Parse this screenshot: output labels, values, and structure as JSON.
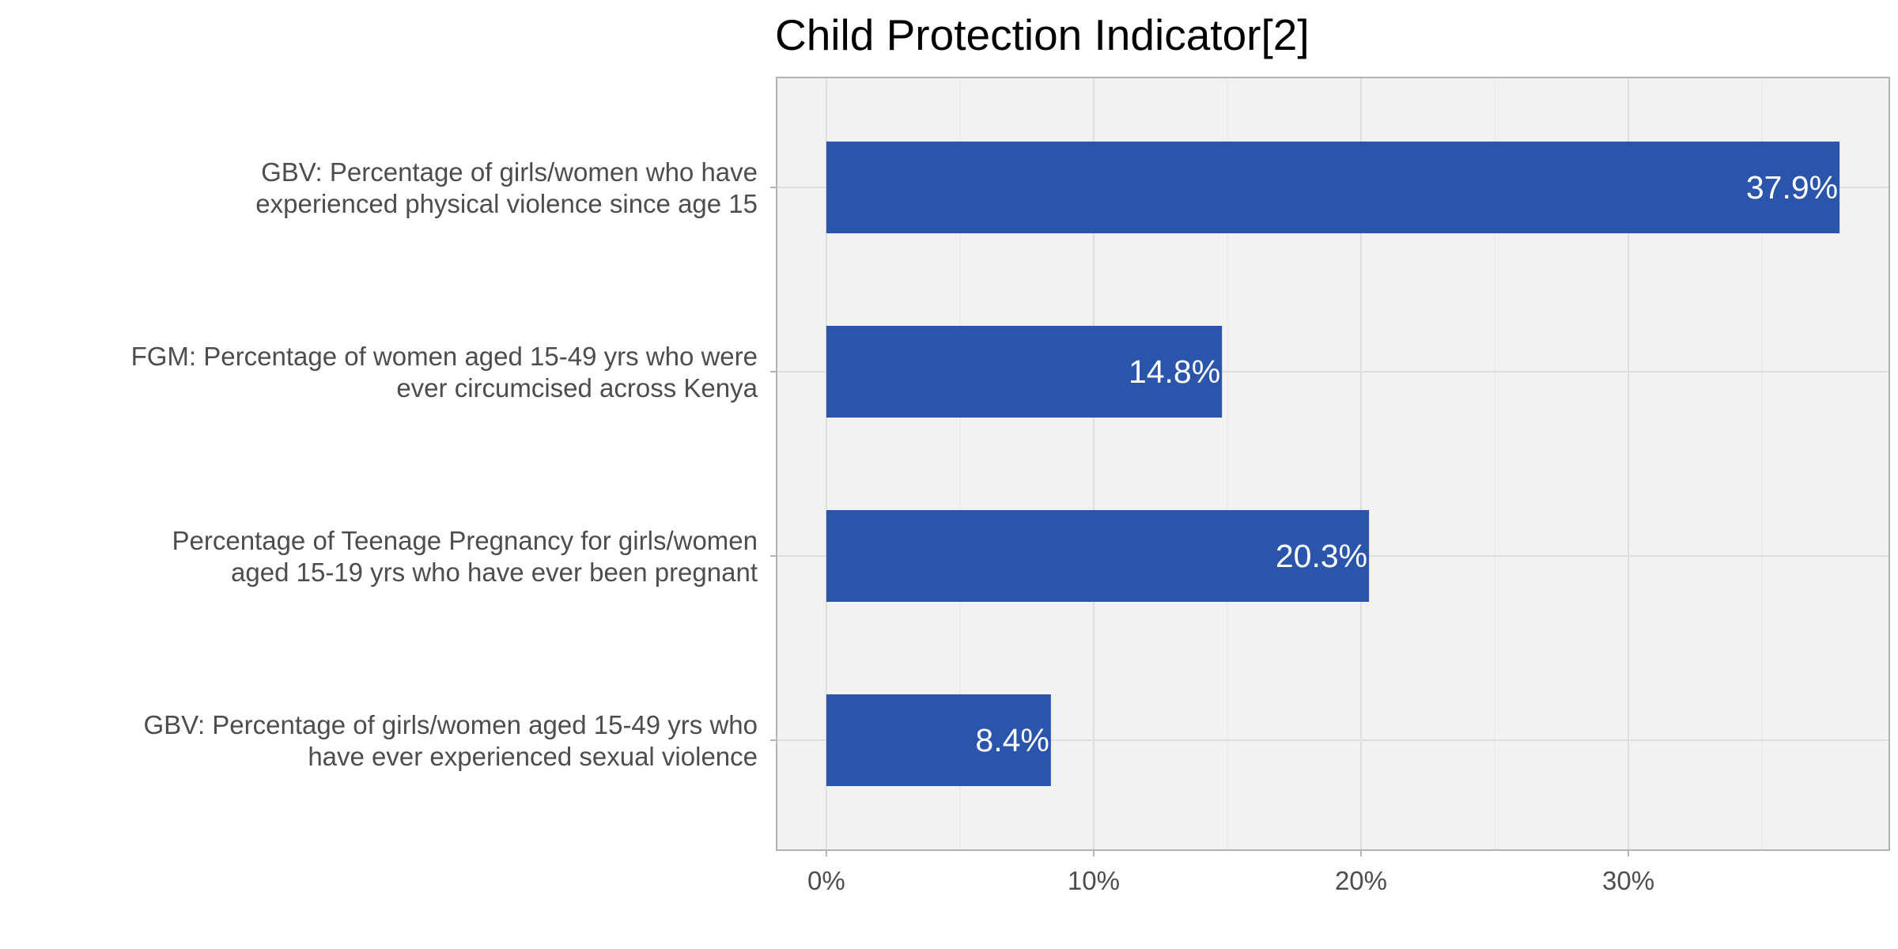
{
  "chart_data": {
    "type": "bar",
    "orientation": "horizontal",
    "title": "Child Protection Indicator[2]",
    "xlabel": "",
    "ylabel": "",
    "categories": [
      [
        "GBV: Percentage of girls/women who have",
        "experienced physical violence since age 15"
      ],
      [
        "FGM: Percentage of women aged 15-49 yrs who were",
        "ever circumcised across Kenya"
      ],
      [
        "Percentage of Teenage Pregnancy for girls/women",
        "aged 15-19 yrs who have ever been pregnant"
      ],
      [
        "GBV: Percentage of girls/women aged 15-49 yrs who",
        "have ever experienced sexual violence"
      ]
    ],
    "values": [
      37.9,
      14.8,
      20.3,
      8.4
    ],
    "value_labels": [
      "37.9%",
      "14.8%",
      "20.3%",
      "8.4%"
    ],
    "xlim": [
      -1.86,
      39.76
    ],
    "x_ticks": [
      0,
      10,
      20,
      30
    ],
    "x_tick_labels": [
      "0%",
      "10%",
      "20%",
      "30%"
    ],
    "grid": true,
    "legend": "none"
  },
  "colors": {
    "bar": "#2b55ab",
    "panel_background": "#f2f2f2",
    "grid_major": "#dedede",
    "grid_minor": "#ebebeb",
    "panel_border": "#b3b3b3"
  }
}
